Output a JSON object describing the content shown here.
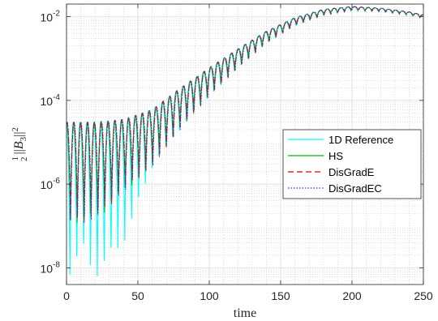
{
  "chart_data": {
    "type": "line",
    "xlabel": "time",
    "ylabel": "1/2 ||B_3||^2",
    "x_scale": "linear",
    "y_scale": "log",
    "xlim": [
      0,
      250
    ],
    "ylim": [
      4e-09,
      0.02
    ],
    "x_ticks": [
      0,
      50,
      100,
      150,
      200,
      250
    ],
    "x_tick_labels": [
      "0",
      "50",
      "100",
      "150",
      "200",
      "250"
    ],
    "y_ticks": [
      1e-08,
      1e-06,
      0.0001,
      0.01
    ],
    "y_tick_labels": [
      {
        "base": "10",
        "exp": "-8"
      },
      {
        "base": "10",
        "exp": "-6"
      },
      {
        "base": "10",
        "exp": "-4"
      },
      {
        "base": "10",
        "exp": "-2"
      }
    ],
    "grid": true,
    "minor_grid": true,
    "legend_position": "right-middle",
    "envelope": {
      "time": [
        0,
        20,
        40,
        60,
        80,
        100,
        120,
        140,
        160,
        180,
        200,
        220,
        240,
        250
      ],
      "upper": [
        3e-05,
        3e-05,
        3.5e-05,
        6e-05,
        0.0002,
        0.0006,
        0.0017,
        0.0045,
        0.0095,
        0.015,
        0.0175,
        0.016,
        0.013,
        0.011
      ],
      "dip_depth": [
        300,
        250,
        60,
        25,
        10,
        5,
        3,
        2,
        1.6,
        1.4,
        1.25,
        1.2,
        1.2,
        1.2
      ],
      "period": 4.8
    },
    "series": [
      {
        "name": "1D Reference",
        "color": "#00ffff",
        "dash": "solid",
        "deep_dips": [
          5e-09,
          1e-08,
          2e-08,
          8e-09,
          5e-09,
          8e-09,
          1.5e-08,
          2e-08,
          4e-08,
          1e-07,
          3e-07,
          8e-07
        ]
      },
      {
        "name": "HS",
        "color": "#00b400",
        "dash": "solid"
      },
      {
        "name": "DisGradE",
        "color": "#e00000",
        "dash": "dashed"
      },
      {
        "name": "DisGradEC",
        "color": "#3030ff",
        "dash": "dotted"
      }
    ]
  }
}
